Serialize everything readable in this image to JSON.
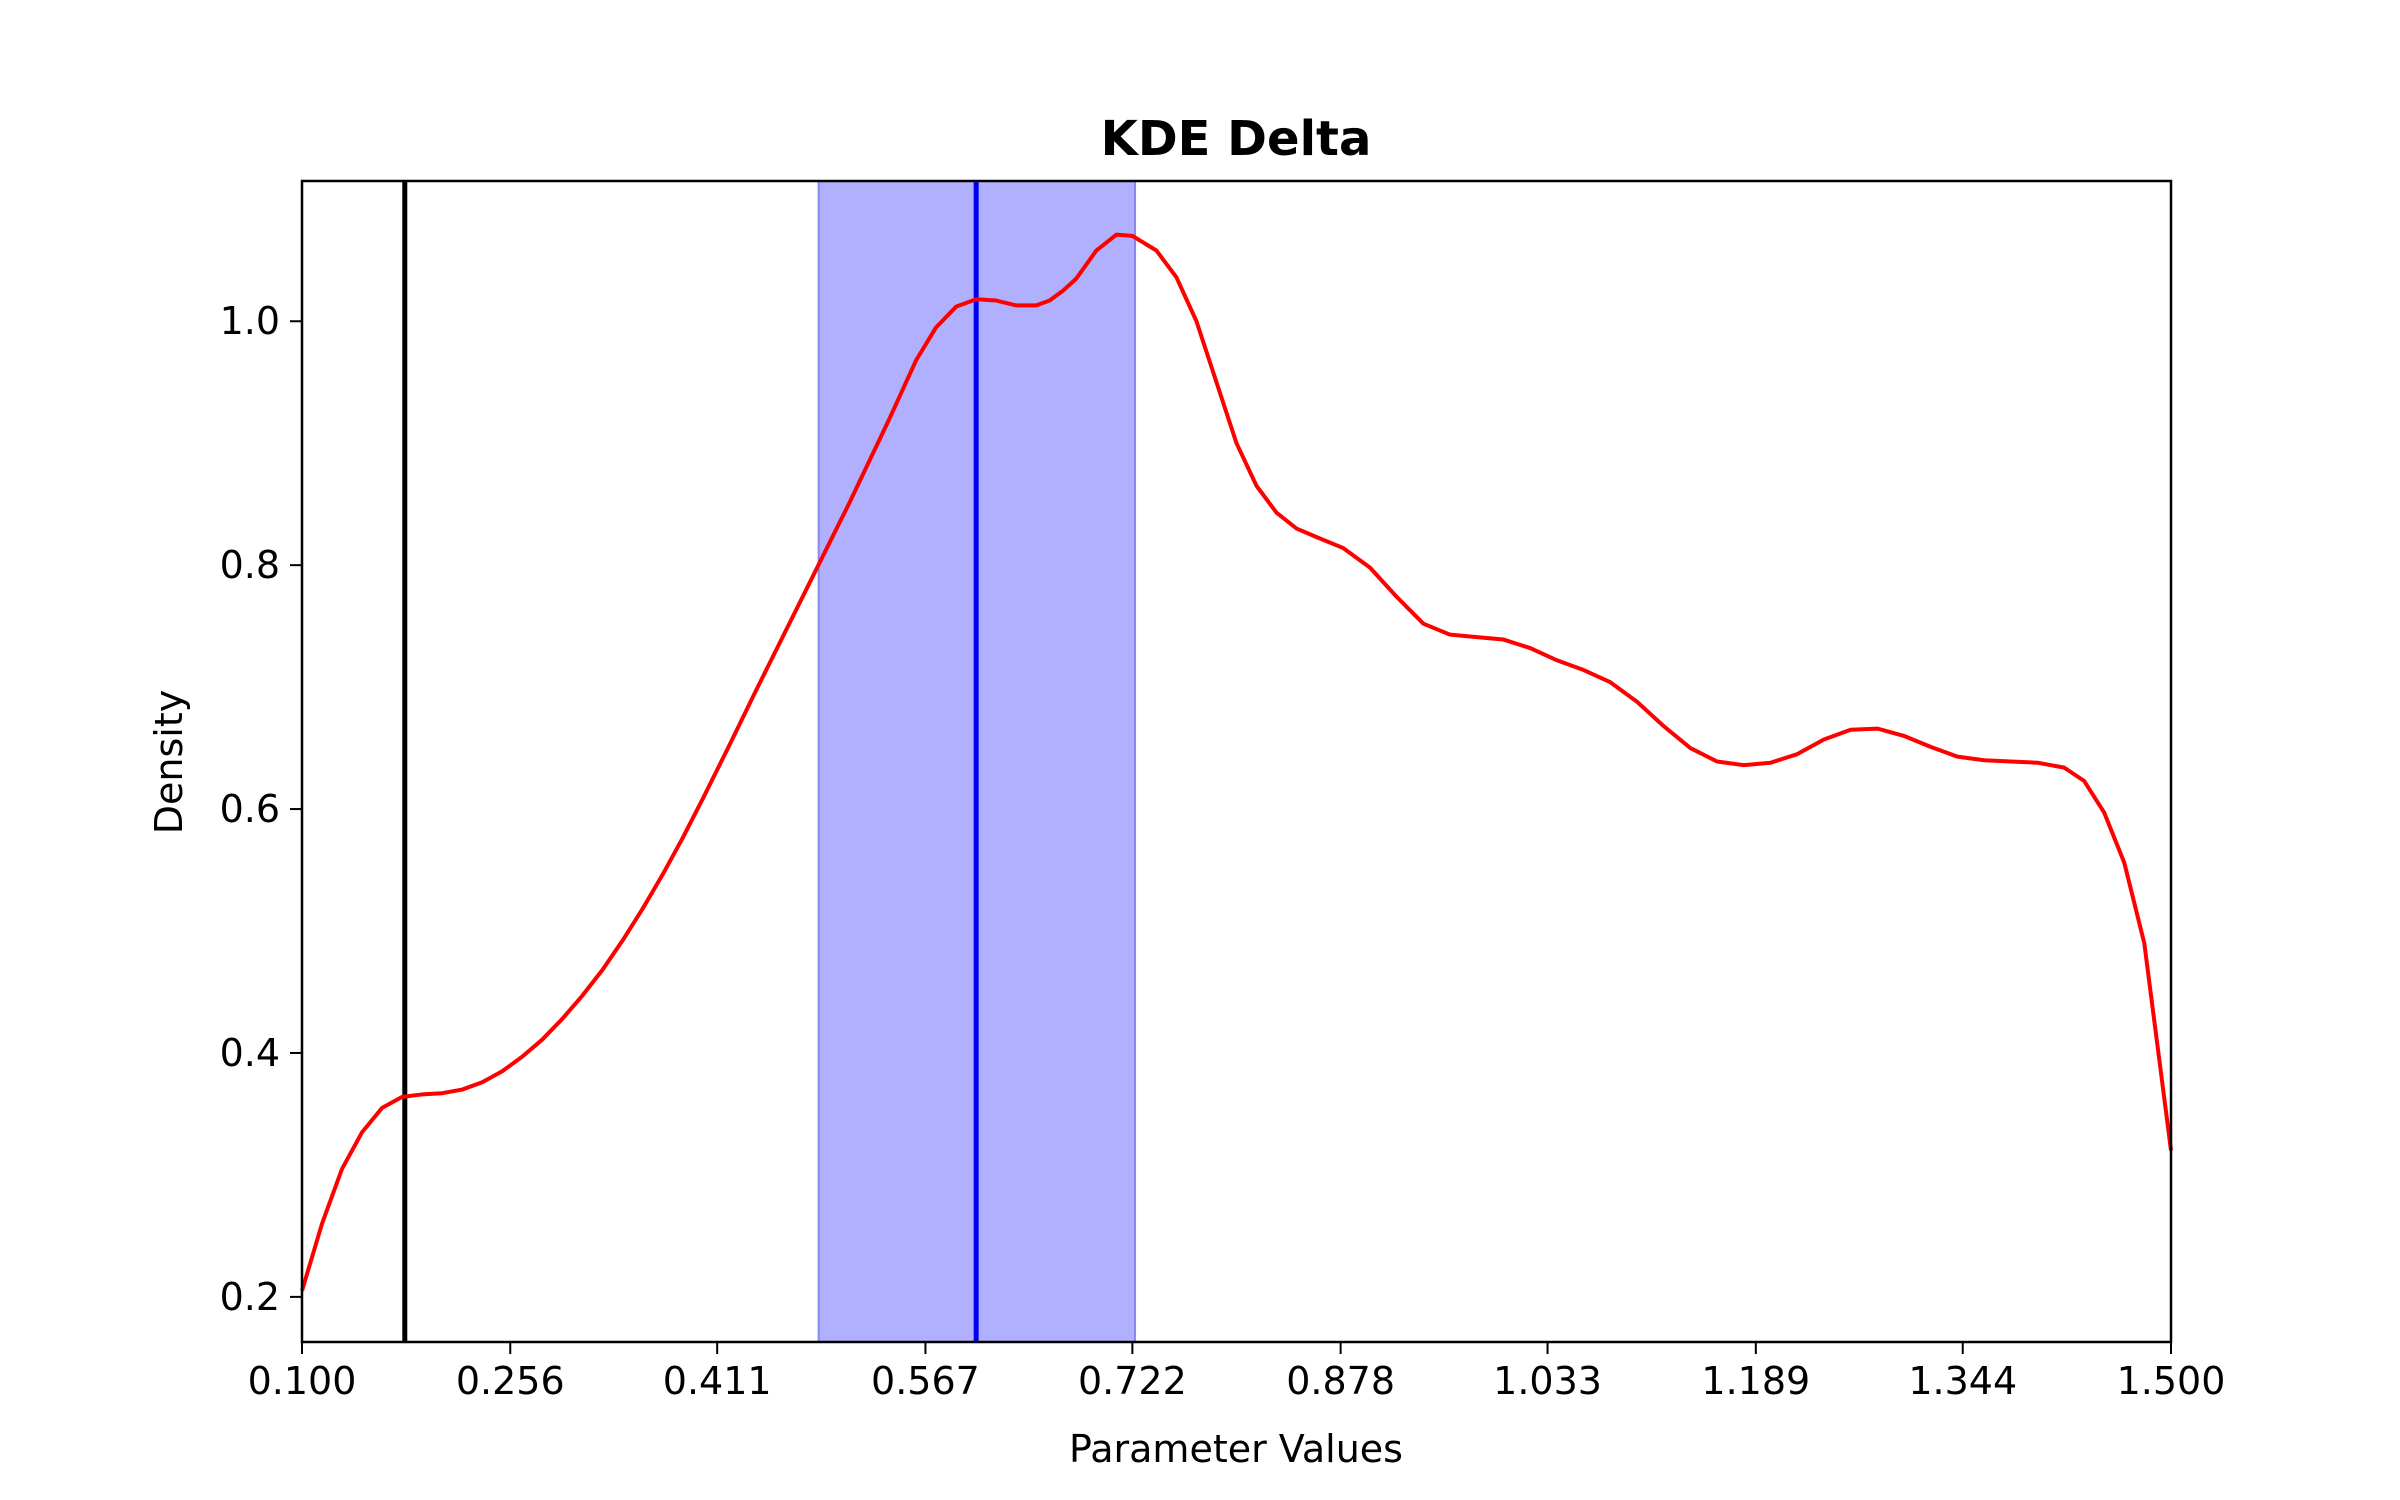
{
  "chart_data": {
    "type": "line",
    "title": "KDE Delta",
    "xlabel": "Parameter Values",
    "ylabel": "Density",
    "xlim": [
      0.1,
      1.5
    ],
    "ylim": [
      0.163,
      1.115
    ],
    "x_ticks": [
      "0.100",
      "0.256",
      "0.411",
      "0.567",
      "0.722",
      "0.878",
      "1.033",
      "1.189",
      "1.344",
      "1.500"
    ],
    "y_ticks": [
      "0.2",
      "0.4",
      "0.6",
      "0.8",
      "1.0"
    ],
    "grid": false,
    "legend": "none",
    "series": [
      {
        "color": "#ff0000",
        "x": [
          0.1,
          0.115,
          0.13,
          0.145,
          0.16,
          0.175,
          0.19,
          0.205,
          0.22,
          0.235,
          0.25,
          0.265,
          0.28,
          0.295,
          0.31,
          0.325,
          0.34,
          0.355,
          0.37,
          0.385,
          0.4,
          0.42,
          0.44,
          0.46,
          0.48,
          0.5,
          0.51,
          0.52,
          0.53,
          0.54,
          0.55,
          0.56,
          0.575,
          0.59,
          0.605,
          0.62,
          0.635,
          0.65,
          0.66,
          0.67,
          0.68,
          0.695,
          0.71,
          0.722,
          0.74,
          0.755,
          0.77,
          0.785,
          0.8,
          0.815,
          0.83,
          0.845,
          0.86,
          0.88,
          0.9,
          0.92,
          0.94,
          0.96,
          0.98,
          1.0,
          1.02,
          1.04,
          1.06,
          1.08,
          1.1,
          1.12,
          1.14,
          1.16,
          1.18,
          1.2,
          1.22,
          1.24,
          1.26,
          1.28,
          1.3,
          1.32,
          1.34,
          1.36,
          1.38,
          1.4,
          1.42,
          1.435,
          1.45,
          1.465,
          1.48,
          1.5
        ],
        "y": [
          0.205,
          0.26,
          0.305,
          0.335,
          0.355,
          0.364,
          0.366,
          0.367,
          0.37,
          0.376,
          0.385,
          0.397,
          0.411,
          0.428,
          0.447,
          0.468,
          0.492,
          0.518,
          0.546,
          0.576,
          0.608,
          0.652,
          0.697,
          0.741,
          0.785,
          0.829,
          0.851,
          0.874,
          0.897,
          0.92,
          0.944,
          0.968,
          0.995,
          1.012,
          1.018,
          1.017,
          1.013,
          1.013,
          1.017,
          1.025,
          1.035,
          1.058,
          1.071,
          1.07,
          1.058,
          1.036,
          1.0,
          0.95,
          0.9,
          0.865,
          0.843,
          0.83,
          0.823,
          0.814,
          0.798,
          0.774,
          0.752,
          0.743,
          0.741,
          0.739,
          0.732,
          0.722,
          0.714,
          0.704,
          0.688,
          0.668,
          0.65,
          0.639,
          0.636,
          0.638,
          0.645,
          0.657,
          0.665,
          0.666,
          0.66,
          0.651,
          0.643,
          0.64,
          0.639,
          0.638,
          0.634,
          0.623,
          0.597,
          0.556,
          0.49,
          0.32
        ]
      }
    ],
    "vlines": [
      {
        "x": 0.177,
        "color": "#000000"
      },
      {
        "x": 0.605,
        "color": "#0000ee"
      }
    ],
    "span": {
      "x0": 0.487,
      "x1": 0.724,
      "color": "#b0b0ff",
      "edge_color": "#8888ee"
    }
  }
}
